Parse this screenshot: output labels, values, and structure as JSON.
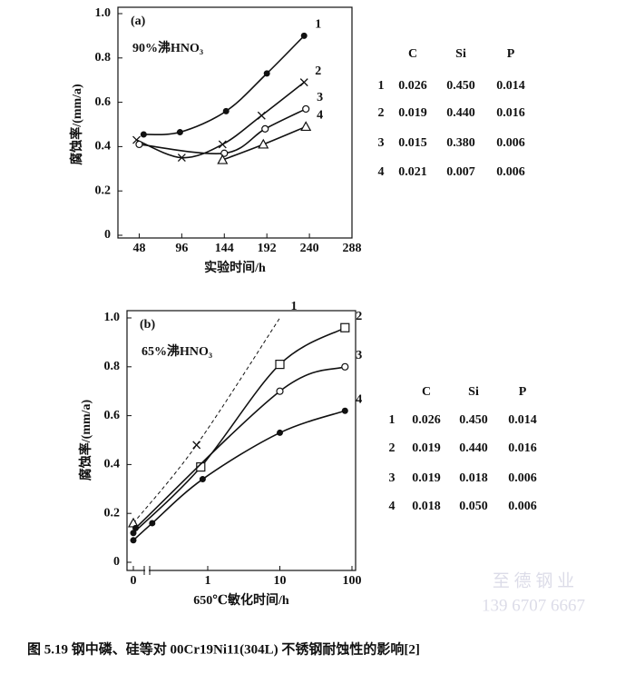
{
  "chart_data": [
    {
      "type": "line",
      "annotation": "(a)",
      "subtitle": "90%沸HNO₃",
      "y_label": "腐蚀率/(mm/a)",
      "x_label": "实验时间/h",
      "xlim": [
        24,
        288
      ],
      "xticks": [
        48,
        96,
        144,
        192,
        240,
        288
      ],
      "ylim": [
        0,
        1
      ],
      "yticks": [
        0,
        0.2,
        0.4,
        0.6,
        0.8,
        {
          "value": 1,
          "label": "1.0"
        }
      ],
      "series": [
        {
          "name": "1",
          "color": "#111111",
          "marker": "dot",
          "x": [
            53,
            94,
            146,
            192,
            234
          ],
          "values": [
            0.455,
            0.465,
            0.56,
            0.73,
            0.9
          ]
        },
        {
          "name": "2",
          "color": "#111111",
          "marker": "x",
          "x": [
            45,
            96,
            142,
            186,
            234
          ],
          "values": [
            0.43,
            0.35,
            0.41,
            0.54,
            0.69
          ]
        },
        {
          "name": "3",
          "color": "#111111",
          "marker": "circle",
          "x": [
            48,
            144,
            190,
            236
          ],
          "values": [
            0.41,
            0.37,
            0.48,
            0.57
          ]
        },
        {
          "name": "4",
          "color": "#111111",
          "marker": "triangle",
          "x": [
            142,
            188,
            236
          ],
          "values": [
            0.34,
            0.41,
            0.49
          ]
        }
      ],
      "table": {
        "columns": [
          "C",
          "Si",
          "P"
        ],
        "rows": [
          [
            "1",
            "0.026",
            "0.450",
            "0.014"
          ],
          [
            "2",
            "0.019",
            "0.440",
            "0.016"
          ],
          [
            "3",
            "0.015",
            "0.380",
            "0.006"
          ],
          [
            "4",
            "0.021",
            "0.007",
            "0.006"
          ]
        ]
      }
    },
    {
      "type": "line",
      "annotation": "(b)",
      "subtitle": "65%沸HNO₃",
      "y_label": "腐蚀率/(mm/a)",
      "x_label": "650℃敏化时间/h",
      "x_log": true,
      "x_break": true,
      "xlim": [
        0,
        100
      ],
      "xticks": [
        0,
        1,
        10,
        100
      ],
      "ylim": [
        0,
        1
      ],
      "yticks": [
        0,
        0.2,
        0.4,
        0.6,
        0.8,
        {
          "value": 1,
          "label": "1.0"
        }
      ],
      "series": [
        {
          "name": "1",
          "color": "#111111",
          "dashed": true,
          "markers": [
            "triangle",
            "x",
            null
          ],
          "x": [
            0,
            0.7,
            10
          ],
          "values": [
            0.16,
            0.48,
            1.0
          ]
        },
        {
          "name": "2",
          "color": "#111111",
          "markers": [
            "dot",
            "square",
            "square",
            "square"
          ],
          "x": [
            0,
            0.8,
            10,
            80
          ],
          "values": [
            0.12,
            0.39,
            0.81,
            0.96
          ]
        },
        {
          "name": "3",
          "color": "#111111",
          "markers": [
            "dot",
            "circle",
            "circle"
          ],
          "x": [
            0.1,
            10,
            80
          ],
          "values": [
            0.14,
            0.7,
            0.8
          ]
        },
        {
          "name": "4",
          "color": "#111111",
          "markers": [
            "dot",
            "dot",
            "dot",
            "dot",
            "dot"
          ],
          "x": [
            0,
            0.17,
            0.85,
            10,
            80
          ],
          "values": [
            0.09,
            0.16,
            0.34,
            0.53,
            0.62
          ]
        }
      ],
      "table": {
        "columns": [
          "C",
          "Si",
          "P"
        ],
        "rows": [
          [
            "1",
            "0.026",
            "0.450",
            "0.014"
          ],
          [
            "2",
            "0.019",
            "0.440",
            "0.016"
          ],
          [
            "3",
            "0.019",
            "0.018",
            "0.006"
          ],
          [
            "4",
            "0.018",
            "0.050",
            "0.006"
          ]
        ]
      }
    }
  ],
  "caption": "图 5.19  钢中磷、硅等对 00Cr19Ni11(304L) 不锈钢耐蚀性的影响[2]",
  "watermark": [
    "至 德 钢 业",
    "139 6707 6667"
  ]
}
